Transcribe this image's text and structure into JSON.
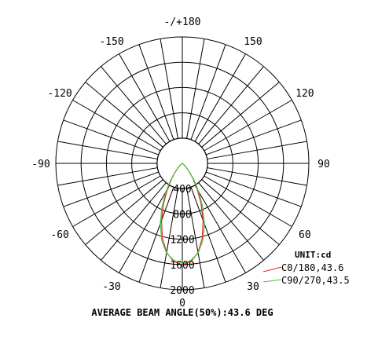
{
  "chart_data": {
    "type": "polar",
    "title": "",
    "unit_label": "UNIT:cd",
    "footer": "AVERAGE BEAM ANGLE(50%):43.6 DEG",
    "radial_max": 2000,
    "radial_ticks": [
      400,
      800,
      1200,
      1600,
      2000
    ],
    "radial_tick_labels": [
      "400",
      "800",
      "1200",
      "1600",
      "2000"
    ],
    "angle_labels": [
      {
        "angle": 180,
        "text": "-/+180"
      },
      {
        "angle": -150,
        "text": "-150"
      },
      {
        "angle": 150,
        "text": "150"
      },
      {
        "angle": -120,
        "text": "-120"
      },
      {
        "angle": 120,
        "text": "120"
      },
      {
        "angle": -90,
        "text": "-90"
      },
      {
        "angle": 90,
        "text": "90"
      },
      {
        "angle": -60,
        "text": "-60"
      },
      {
        "angle": 60,
        "text": "60"
      },
      {
        "angle": -30,
        "text": "-30"
      },
      {
        "angle": 30,
        "text": "30"
      },
      {
        "angle": 0,
        "text": "0"
      }
    ],
    "series": [
      {
        "name": "C0/180,43.6",
        "color": "#e8251f",
        "angles": [
          0,
          5,
          10,
          15,
          20,
          25,
          30,
          35,
          40,
          45,
          50,
          55,
          60
        ],
        "values": [
          1605,
          1560,
          1430,
          1220,
          960,
          700,
          470,
          290,
          160,
          80,
          35,
          12,
          0
        ]
      },
      {
        "name": "C90/270,43.5",
        "color": "#3ec83e",
        "angles": [
          0,
          5,
          10,
          15,
          20,
          25,
          30,
          35,
          40,
          45,
          50,
          55,
          60
        ],
        "values": [
          1580,
          1540,
          1440,
          1260,
          1020,
          760,
          520,
          320,
          175,
          85,
          38,
          12,
          0
        ]
      }
    ]
  }
}
